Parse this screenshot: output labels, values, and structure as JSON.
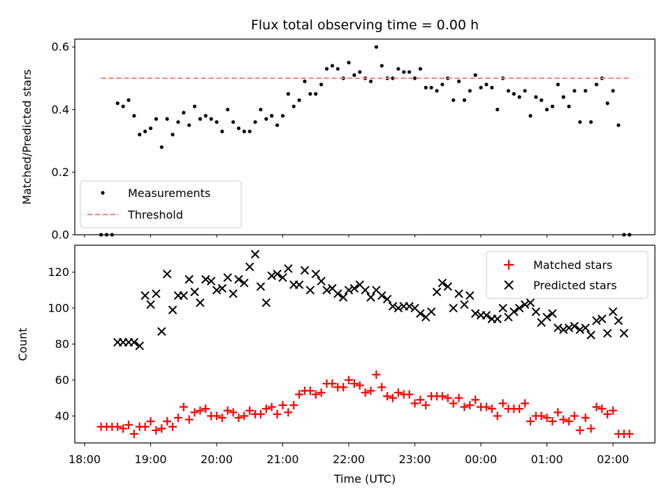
{
  "chart_data": [
    {
      "type": "scatter",
      "title": "Flux total observing time = 0.00 h",
      "xlabel": "",
      "ylabel": "Matched/Predicted stars",
      "xlim": [
        "18:00",
        "02:40"
      ],
      "ylim": [
        0,
        0.625
      ],
      "yticks": [
        0.0,
        0.2,
        0.4,
        0.6
      ],
      "grid": false,
      "legend_position": "lower-left",
      "legend": [
        {
          "label": "Measurements",
          "marker": "dot",
          "color": "#000000"
        },
        {
          "label": "Threshold",
          "marker": "dashed-line",
          "color": "#ff7f7f"
        }
      ],
      "threshold": {
        "value": 0.5,
        "x_start": "18:15",
        "x_end": "02:15"
      },
      "series": [
        {
          "name": "Measurements",
          "color": "#000000",
          "x": [
            "18:15",
            "18:20",
            "18:25",
            "18:30",
            "18:35",
            "18:40",
            "18:45",
            "18:50",
            "18:55",
            "19:00",
            "19:05",
            "19:10",
            "19:15",
            "19:20",
            "19:25",
            "19:30",
            "19:35",
            "19:40",
            "19:45",
            "19:50",
            "19:55",
            "20:00",
            "20:05",
            "20:10",
            "20:15",
            "20:20",
            "20:25",
            "20:30",
            "20:35",
            "20:40",
            "20:45",
            "20:50",
            "20:55",
            "21:00",
            "21:05",
            "21:10",
            "21:15",
            "21:20",
            "21:25",
            "21:30",
            "21:35",
            "21:40",
            "21:45",
            "21:50",
            "21:55",
            "22:00",
            "22:05",
            "22:10",
            "22:15",
            "22:20",
            "22:25",
            "22:30",
            "22:35",
            "22:40",
            "22:45",
            "22:50",
            "22:55",
            "23:00",
            "23:05",
            "23:10",
            "23:15",
            "23:20",
            "23:25",
            "23:30",
            "23:35",
            "23:40",
            "23:45",
            "23:50",
            "23:55",
            "00:00",
            "00:05",
            "00:10",
            "00:15",
            "00:20",
            "00:25",
            "00:30",
            "00:35",
            "00:40",
            "00:45",
            "00:50",
            "00:55",
            "01:00",
            "01:05",
            "01:10",
            "01:15",
            "01:20",
            "01:25",
            "01:30",
            "01:35",
            "01:40",
            "01:45",
            "01:50",
            "01:55",
            "02:00",
            "02:05",
            "02:10",
            "02:15"
          ],
          "y": [
            0,
            0,
            0,
            0.42,
            0.41,
            0.43,
            0.38,
            0.32,
            0.33,
            0.34,
            0.37,
            0.28,
            0.37,
            0.32,
            0.36,
            0.39,
            0.35,
            0.41,
            0.37,
            0.38,
            0.37,
            0.36,
            0.33,
            0.4,
            0.36,
            0.34,
            0.33,
            0.33,
            0.36,
            0.4,
            0.37,
            0.38,
            0.35,
            0.38,
            0.45,
            0.41,
            0.43,
            0.49,
            0.45,
            0.45,
            0.48,
            0.53,
            0.54,
            0.53,
            0.5,
            0.55,
            0.51,
            0.52,
            0.5,
            0.49,
            0.6,
            0.54,
            0.5,
            0.5,
            0.53,
            0.52,
            0.52,
            0.5,
            0.53,
            0.47,
            0.47,
            0.46,
            0.48,
            0.5,
            0.43,
            0.49,
            0.43,
            0.46,
            0.51,
            0.47,
            0.48,
            0.47,
            0.4,
            0.5,
            0.46,
            0.45,
            0.44,
            0.46,
            0.38,
            0.44,
            0.43,
            0.4,
            0.41,
            0.48,
            0.44,
            0.41,
            0.46,
            0.36,
            0.46,
            0.36,
            0.48,
            0.5,
            0.42,
            0.46,
            0.35,
            0,
            0
          ]
        }
      ]
    },
    {
      "type": "scatter",
      "title": "",
      "xlabel": "Time (UTC)",
      "ylabel": "Count",
      "xlim": [
        "18:00",
        "02:40"
      ],
      "ylim": [
        25,
        135
      ],
      "yticks": [
        40,
        60,
        80,
        100,
        120
      ],
      "xticks": [
        "18:00",
        "19:00",
        "20:00",
        "21:00",
        "22:00",
        "23:00",
        "00:00",
        "01:00",
        "02:00"
      ],
      "grid": false,
      "legend_position": "top-right",
      "legend": [
        {
          "label": "Matched stars",
          "marker": "plus",
          "color": "#ff0000"
        },
        {
          "label": "Predicted stars",
          "marker": "x",
          "color": "#000000"
        }
      ],
      "series": [
        {
          "name": "Matched stars",
          "color": "#ff0000",
          "x": [
            "18:15",
            "18:20",
            "18:25",
            "18:30",
            "18:35",
            "18:40",
            "18:45",
            "18:50",
            "18:55",
            "19:00",
            "19:05",
            "19:10",
            "19:15",
            "19:20",
            "19:25",
            "19:30",
            "19:35",
            "19:40",
            "19:45",
            "19:50",
            "19:55",
            "20:00",
            "20:05",
            "20:10",
            "20:15",
            "20:20",
            "20:25",
            "20:30",
            "20:35",
            "20:40",
            "20:45",
            "20:50",
            "20:55",
            "21:00",
            "21:05",
            "21:10",
            "21:15",
            "21:20",
            "21:25",
            "21:30",
            "21:35",
            "21:40",
            "21:45",
            "21:50",
            "21:55",
            "22:00",
            "22:05",
            "22:10",
            "22:15",
            "22:20",
            "22:25",
            "22:30",
            "22:35",
            "22:40",
            "22:45",
            "22:50",
            "22:55",
            "23:00",
            "23:05",
            "23:10",
            "23:15",
            "23:20",
            "23:25",
            "23:30",
            "23:35",
            "23:40",
            "23:45",
            "23:50",
            "23:55",
            "00:00",
            "00:05",
            "00:10",
            "00:15",
            "00:20",
            "00:25",
            "00:30",
            "00:35",
            "00:40",
            "00:45",
            "00:50",
            "00:55",
            "01:00",
            "01:05",
            "01:10",
            "01:15",
            "01:20",
            "01:25",
            "01:30",
            "01:35",
            "01:40",
            "01:45",
            "01:50",
            "01:55",
            "02:00",
            "02:05",
            "02:10",
            "02:15"
          ],
          "y": [
            34,
            34,
            34,
            34,
            33,
            35,
            30,
            34,
            34,
            37,
            32,
            33,
            37,
            34,
            39,
            45,
            38,
            42,
            43,
            44,
            40,
            40,
            39,
            43,
            42,
            39,
            40,
            43,
            41,
            41,
            44,
            45,
            41,
            46,
            42,
            46,
            52,
            54,
            54,
            52,
            53,
            58,
            58,
            56,
            56,
            60,
            58,
            57,
            53,
            54,
            63,
            56,
            51,
            50,
            53,
            52,
            52,
            47,
            49,
            46,
            51,
            51,
            51,
            50,
            47,
            50,
            45,
            46,
            49,
            45,
            45,
            44,
            40,
            47,
            44,
            44,
            44,
            47,
            37,
            40,
            40,
            39,
            37,
            42,
            38,
            37,
            40,
            32,
            39,
            33,
            45,
            44,
            41,
            43,
            30,
            30,
            30
          ]
        },
        {
          "name": "Predicted stars",
          "color": "#000000",
          "x": [
            "18:30",
            "18:35",
            "18:40",
            "18:45",
            "18:50",
            "18:55",
            "19:00",
            "19:05",
            "19:10",
            "19:15",
            "19:20",
            "19:25",
            "19:30",
            "19:35",
            "19:40",
            "19:45",
            "19:50",
            "19:55",
            "20:00",
            "20:05",
            "20:10",
            "20:15",
            "20:20",
            "20:25",
            "20:30",
            "20:35",
            "20:40",
            "20:45",
            "20:50",
            "20:55",
            "21:00",
            "21:05",
            "21:10",
            "21:15",
            "21:20",
            "21:25",
            "21:30",
            "21:35",
            "21:40",
            "21:45",
            "21:50",
            "21:55",
            "22:00",
            "22:05",
            "22:10",
            "22:15",
            "22:20",
            "22:25",
            "22:30",
            "22:35",
            "22:40",
            "22:45",
            "22:50",
            "22:55",
            "23:00",
            "23:05",
            "23:10",
            "23:15",
            "23:20",
            "23:25",
            "23:30",
            "23:35",
            "23:40",
            "23:45",
            "23:50",
            "23:55",
            "00:00",
            "00:05",
            "00:10",
            "00:15",
            "00:20",
            "00:25",
            "00:30",
            "00:35",
            "00:40",
            "00:45",
            "00:50",
            "00:55",
            "01:00",
            "01:05",
            "01:10",
            "01:15",
            "01:20",
            "01:25",
            "01:30",
            "01:35",
            "01:40",
            "01:45",
            "01:50",
            "01:55",
            "02:00",
            "02:05",
            "02:10"
          ],
          "y": [
            81,
            81,
            81,
            81,
            79,
            107,
            102,
            108,
            87,
            119,
            99,
            107,
            107,
            116,
            109,
            103,
            116,
            115,
            110,
            111,
            117,
            108,
            116,
            114,
            123,
            130,
            112,
            103,
            118,
            119,
            117,
            122,
            113,
            113,
            121,
            110,
            119,
            115,
            110,
            111,
            108,
            106,
            110,
            111,
            113,
            110,
            106,
            110,
            107,
            105,
            101,
            100,
            101,
            101,
            100,
            97,
            95,
            98,
            109,
            114,
            112,
            100,
            108,
            102,
            107,
            97,
            96,
            96,
            94,
            94,
            100,
            95,
            98,
            100,
            102,
            103,
            98,
            92,
            95,
            97,
            89,
            88,
            89,
            90,
            88,
            89,
            85,
            93,
            94,
            86,
            98,
            93,
            86
          ]
        }
      ]
    }
  ]
}
